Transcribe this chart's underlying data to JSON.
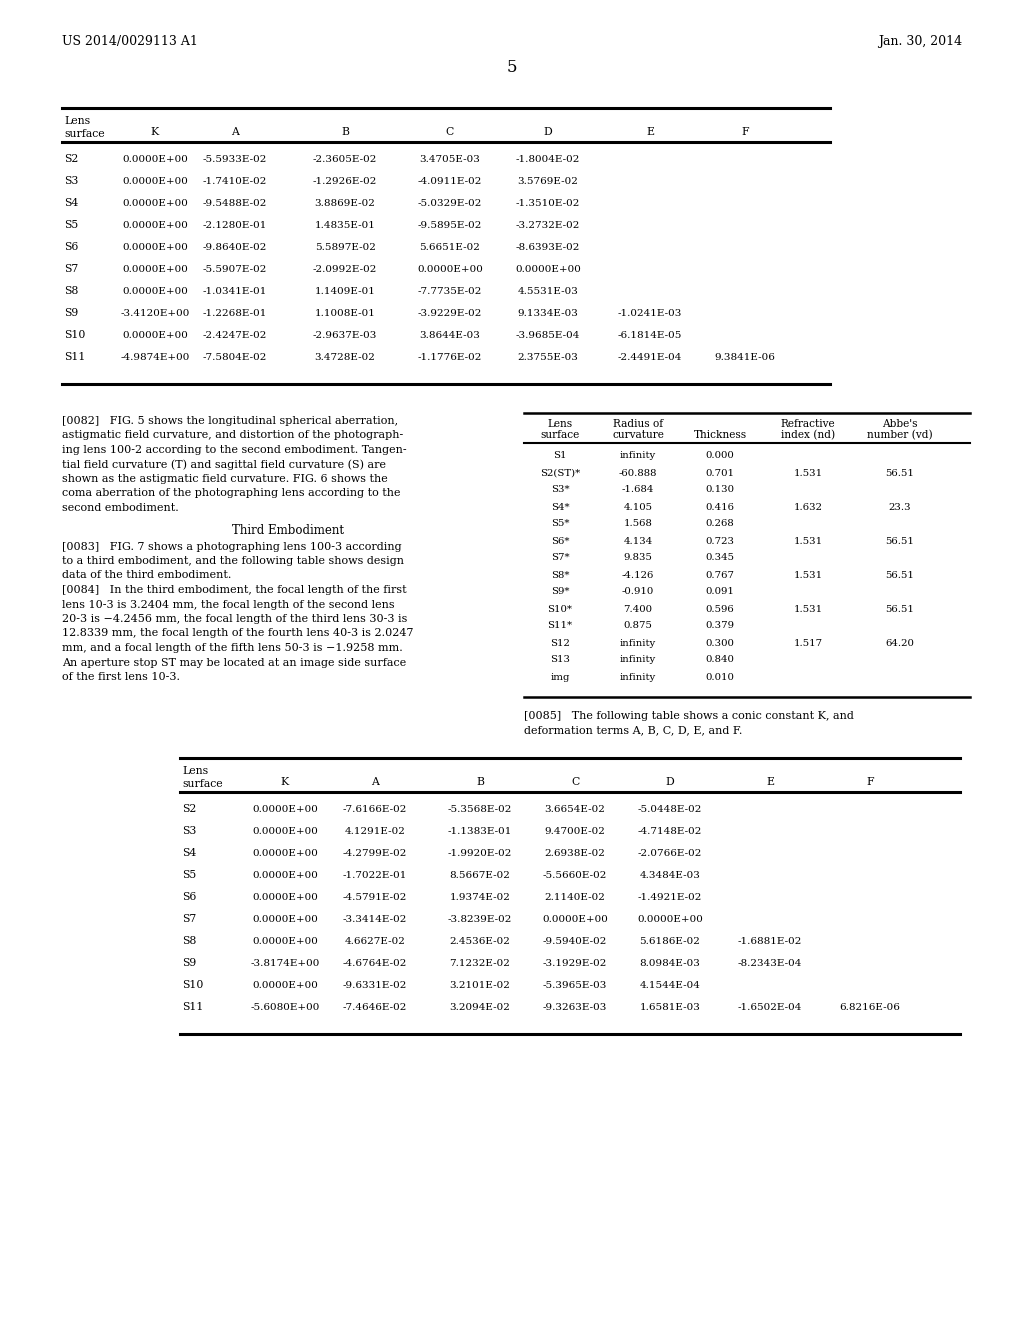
{
  "header_left": "US 2014/0029113 A1",
  "header_right": "Jan. 30, 2014",
  "page_number": "5",
  "background_color": "#ffffff",
  "table1": {
    "rows": [
      [
        "S2",
        "0.0000E+00",
        "-5.5933E-02",
        "-2.3605E-02",
        "3.4705E-03",
        "-1.8004E-02",
        "",
        ""
      ],
      [
        "S3",
        "0.0000E+00",
        "-1.7410E-02",
        "-1.2926E-02",
        "-4.0911E-02",
        "3.5769E-02",
        "",
        ""
      ],
      [
        "S4",
        "0.0000E+00",
        "-9.5488E-02",
        "3.8869E-02",
        "-5.0329E-02",
        "-1.3510E-02",
        "",
        ""
      ],
      [
        "S5",
        "0.0000E+00",
        "-2.1280E-01",
        "1.4835E-01",
        "-9.5895E-02",
        "-3.2732E-02",
        "",
        ""
      ],
      [
        "S6",
        "0.0000E+00",
        "-9.8640E-02",
        "5.5897E-02",
        "5.6651E-02",
        "-8.6393E-02",
        "",
        ""
      ],
      [
        "S7",
        "0.0000E+00",
        "-5.5907E-02",
        "-2.0992E-02",
        "0.0000E+00",
        "0.0000E+00",
        "",
        ""
      ],
      [
        "S8",
        "0.0000E+00",
        "-1.0341E-01",
        "1.1409E-01",
        "-7.7735E-02",
        "4.5531E-03",
        "",
        ""
      ],
      [
        "S9",
        "-3.4120E+00",
        "-1.2268E-01",
        "1.1008E-01",
        "-3.9229E-02",
        "9.1334E-03",
        "-1.0241E-03",
        ""
      ],
      [
        "S10",
        "0.0000E+00",
        "-2.4247E-02",
        "-2.9637E-03",
        "3.8644E-03",
        "-3.9685E-04",
        "-6.1814E-05",
        ""
      ],
      [
        "S11",
        "-4.9874E+00",
        "-7.5804E-02",
        "3.4728E-02",
        "-1.1776E-02",
        "2.3755E-03",
        "-2.4491E-04",
        "9.3841E-06"
      ]
    ]
  },
  "table2": {
    "rows": [
      [
        "S1",
        "infinity",
        "0.000",
        "",
        ""
      ],
      [
        "S2(ST)*",
        "-60.888",
        "0.701",
        "1.531",
        "56.51"
      ],
      [
        "S3*",
        "-1.684",
        "0.130",
        "",
        ""
      ],
      [
        "S4*",
        "4.105",
        "0.416",
        "1.632",
        "23.3"
      ],
      [
        "S5*",
        "1.568",
        "0.268",
        "",
        ""
      ],
      [
        "S6*",
        "4.134",
        "0.723",
        "1.531",
        "56.51"
      ],
      [
        "S7*",
        "9.835",
        "0.345",
        "",
        ""
      ],
      [
        "S8*",
        "-4.126",
        "0.767",
        "1.531",
        "56.51"
      ],
      [
        "S9*",
        "-0.910",
        "0.091",
        "",
        ""
      ],
      [
        "S10*",
        "7.400",
        "0.596",
        "1.531",
        "56.51"
      ],
      [
        "S11*",
        "0.875",
        "0.379",
        "",
        ""
      ],
      [
        "S12",
        "infinity",
        "0.300",
        "1.517",
        "64.20"
      ],
      [
        "S13",
        "infinity",
        "0.840",
        "",
        ""
      ],
      [
        "img",
        "infinity",
        "0.010",
        "",
        ""
      ]
    ]
  },
  "table3": {
    "rows": [
      [
        "S2",
        "0.0000E+00",
        "-7.6166E-02",
        "-5.3568E-02",
        "3.6654E-02",
        "-5.0448E-02",
        "",
        ""
      ],
      [
        "S3",
        "0.0000E+00",
        "4.1291E-02",
        "-1.1383E-01",
        "9.4700E-02",
        "-4.7148E-02",
        "",
        ""
      ],
      [
        "S4",
        "0.0000E+00",
        "-4.2799E-02",
        "-1.9920E-02",
        "2.6938E-02",
        "-2.0766E-02",
        "",
        ""
      ],
      [
        "S5",
        "0.0000E+00",
        "-1.7022E-01",
        "8.5667E-02",
        "-5.5660E-02",
        "4.3484E-03",
        "",
        ""
      ],
      [
        "S6",
        "0.0000E+00",
        "-4.5791E-02",
        "1.9374E-02",
        "2.1140E-02",
        "-1.4921E-02",
        "",
        ""
      ],
      [
        "S7",
        "0.0000E+00",
        "-3.3414E-02",
        "-3.8239E-02",
        "0.0000E+00",
        "0.0000E+00",
        "",
        ""
      ],
      [
        "S8",
        "0.0000E+00",
        "4.6627E-02",
        "2.4536E-02",
        "-9.5940E-02",
        "5.6186E-02",
        "-1.6881E-02",
        ""
      ],
      [
        "S9",
        "-3.8174E+00",
        "-4.6764E-02",
        "7.1232E-02",
        "-3.1929E-02",
        "8.0984E-03",
        "-8.2343E-04",
        ""
      ],
      [
        "S10",
        "0.0000E+00",
        "-9.6331E-02",
        "3.2101E-02",
        "-5.3965E-03",
        "4.1544E-04",
        "",
        ""
      ],
      [
        "S11",
        "-5.6080E+00",
        "-7.4646E-02",
        "3.2094E-02",
        "-9.3263E-03",
        "1.6581E-03",
        "-1.6502E-04",
        "6.8216E-06"
      ]
    ]
  },
  "para0082_lines": [
    "[0082]   FIG. 5 shows the longitudinal spherical aberration,",
    "astigmatic field curvature, and distortion of the photograph-",
    "ing lens 100-2 according to the second embodiment. Tangen-",
    "tial field curvature (T) and sagittal field curvature (S) are",
    "shown as the astigmatic field curvature. FIG. 6 shows the",
    "coma aberration of the photographing lens according to the",
    "second embodiment."
  ],
  "heading_third": "Third Embodiment",
  "para0083_lines": [
    "[0083]   FIG. 7 shows a photographing lens 100-3 according",
    "to a third embodiment, and the following table shows design",
    "data of the third embodiment."
  ],
  "para0084_lines": [
    "[0084]   In the third embodiment, the focal length of the first",
    "lens 10-3 is 3.2404 mm, the focal length of the second lens",
    "20-3 is −4.2456 mm, the focal length of the third lens 30-3 is",
    "12.8339 mm, the focal length of the fourth lens 40-3 is 2.0247",
    "mm, and a focal length of the fifth lens 50-3 is −1.9258 mm.",
    "An aperture stop ST may be located at an image side surface",
    "of the first lens 10-3."
  ],
  "para0085_lines": [
    "[0085]   The following table shows a conic constant K, and",
    "deformation terms A, B, C, D, E, and F."
  ]
}
